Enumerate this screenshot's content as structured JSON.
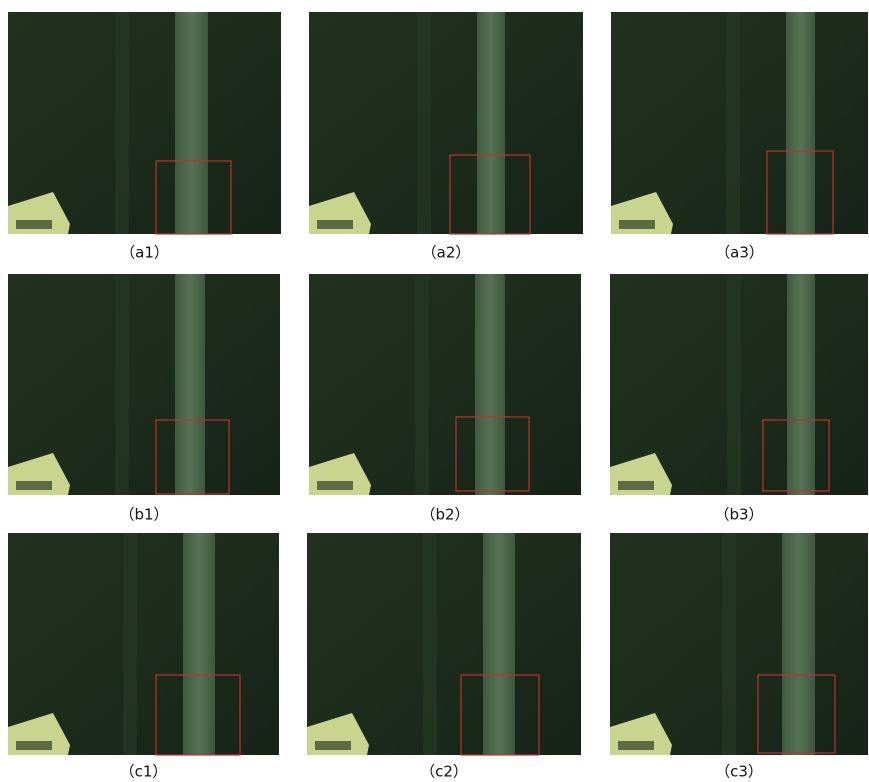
{
  "panels": [
    {
      "label": "（a1）"
    },
    {
      "label": "（a2）"
    },
    {
      "label": "（a3）"
    },
    {
      "label": "（b1）"
    },
    {
      "label": "（b2）"
    },
    {
      "label": "（b3）"
    },
    {
      "label": "（c1）"
    },
    {
      "label": "（c2）"
    },
    {
      "label": "（c3）"
    }
  ]
}
